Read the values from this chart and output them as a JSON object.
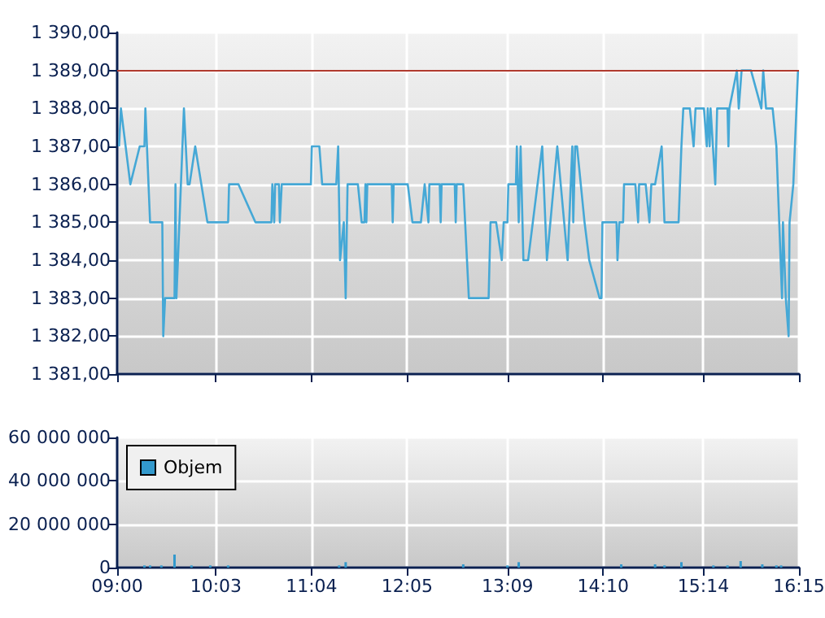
{
  "chart_data": [
    {
      "type": "line",
      "x": [
        9.02,
        9.04,
        9.14,
        9.24,
        9.29,
        9.3,
        9.35,
        9.48,
        9.49,
        9.51,
        9.61,
        9.62,
        9.63,
        9.71,
        9.75,
        9.77,
        9.83,
        9.96,
        10.18,
        10.19,
        10.29,
        10.47,
        10.64,
        10.65,
        10.67,
        10.68,
        10.72,
        10.73,
        10.75,
        11.06,
        11.07,
        11.15,
        11.18,
        11.33,
        11.35,
        11.37,
        11.41,
        11.43,
        11.45,
        11.56,
        11.6,
        11.63,
        11.64,
        11.65,
        11.66,
        11.92,
        11.93,
        11.94,
        12.09,
        12.14,
        12.23,
        12.27,
        12.31,
        12.32,
        12.43,
        12.44,
        12.45,
        12.59,
        12.6,
        12.61,
        12.68,
        12.74,
        12.95,
        12.97,
        13.03,
        13.09,
        13.11,
        13.15,
        13.16,
        13.24,
        13.25,
        13.27,
        13.29,
        13.32,
        13.37,
        13.52,
        13.57,
        13.68,
        13.79,
        13.84,
        13.85,
        13.87,
        13.89,
        13.97,
        14.02,
        14.13,
        14.15,
        14.16,
        14.31,
        14.32,
        14.34,
        14.38,
        14.39,
        14.51,
        14.54,
        14.55,
        14.62,
        14.66,
        14.68,
        14.72,
        14.79,
        14.82,
        14.97,
        15.0,
        15.02,
        15.09,
        15.13,
        15.15,
        15.24,
        15.27,
        15.28,
        15.3,
        15.31,
        15.36,
        15.38,
        15.49,
        15.5,
        15.51,
        15.59,
        15.61,
        15.64,
        15.74,
        15.85,
        15.87,
        15.88,
        15.9,
        15.97,
        16.01,
        16.07,
        16.08,
        16.11,
        16.14,
        16.15,
        16.19,
        16.24
      ],
      "series": [
        {
          "color": "#45a8d6",
          "values": [
            1387,
            1388,
            1386,
            1387,
            1387,
            1388,
            1385,
            1385,
            1382,
            1383,
            1383,
            1386,
            1383,
            1388,
            1386,
            1386,
            1387,
            1385,
            1385,
            1386,
            1386,
            1385,
            1385,
            1386,
            1385,
            1386,
            1386,
            1385,
            1386,
            1386,
            1387,
            1387,
            1386,
            1386,
            1387,
            1384,
            1385,
            1383,
            1386,
            1386,
            1385,
            1385,
            1386,
            1385,
            1386,
            1386,
            1385,
            1386,
            1386,
            1385,
            1385,
            1386,
            1385,
            1386,
            1386,
            1385,
            1386,
            1386,
            1385,
            1386,
            1386,
            1383,
            1383,
            1385,
            1385,
            1384,
            1385,
            1385,
            1386,
            1386,
            1387,
            1385,
            1387,
            1384,
            1384,
            1387,
            1384,
            1387,
            1384,
            1387,
            1385,
            1387,
            1387,
            1385,
            1384,
            1383,
            1383,
            1385,
            1385,
            1384,
            1385,
            1385,
            1386,
            1386,
            1385,
            1386,
            1386,
            1385,
            1386,
            1386,
            1387,
            1385,
            1385,
            1387,
            1388,
            1388,
            1387,
            1388,
            1388,
            1387,
            1388,
            1387,
            1388,
            1386,
            1388,
            1388,
            1387,
            1388,
            1389,
            1388,
            1389,
            1389,
            1388,
            1389,
            1389,
            1388,
            1388,
            1387,
            1383,
            1385,
            1383,
            1382,
            1385,
            1386,
            1389
          ]
        }
      ],
      "xlim": [
        9,
        16.25
      ],
      "xticks": [
        {
          "value": 9,
          "label": null
        },
        {
          "value": 10.05,
          "label": null
        },
        {
          "value": 11.0667,
          "label": null
        },
        {
          "value": 12.0833,
          "label": null
        },
        {
          "value": 13.15,
          "label": null
        },
        {
          "value": 14.1667,
          "label": null
        },
        {
          "value": 15.2333,
          "label": null
        },
        {
          "value": 16.25,
          "label": null
        }
      ],
      "ylim": [
        1381,
        1390
      ],
      "yticks": [
        {
          "value": 1381,
          "label": "1 381,00"
        },
        {
          "value": 1382,
          "label": "1 382,00"
        },
        {
          "value": 1383,
          "label": "1 383,00"
        },
        {
          "value": 1384,
          "label": "1 384,00"
        },
        {
          "value": 1385,
          "label": "1 385,00"
        },
        {
          "value": 1386,
          "label": "1 386,00"
        },
        {
          "value": 1387,
          "label": "1 387,00"
        },
        {
          "value": 1388,
          "label": "1 388,00"
        },
        {
          "value": 1389,
          "label": "1 389,00"
        },
        {
          "value": 1390,
          "label": "1 390,00"
        }
      ],
      "ref_lines": [
        {
          "axis": "y",
          "value": 1389,
          "color": "#b03a2e"
        }
      ],
      "grid": true,
      "tick_labels": "y"
    },
    {
      "type": "bar",
      "x": [
        9.29,
        9.35,
        9.47,
        9.61,
        9.79,
        9.99,
        10.18,
        11.36,
        11.43,
        12.68,
        13.15,
        13.27,
        14.36,
        14.72,
        14.82,
        15.0,
        15.34,
        15.49,
        15.63,
        15.86,
        16.01,
        16.06
      ],
      "series": [
        {
          "name": "Objem",
          "color": "#3399cc",
          "values": [
            1000000,
            1000000,
            1000000,
            6000000,
            1000000,
            1000000,
            1000000,
            1000000,
            2500000,
            1500000,
            1000000,
            2500000,
            1500000,
            1500000,
            1000000,
            2500000,
            1000000,
            1000000,
            3000000,
            1500000,
            1000000,
            1000000
          ]
        }
      ],
      "xlim": [
        9,
        16.25
      ],
      "xticks": [
        {
          "value": 9,
          "label": "09:00"
        },
        {
          "value": 10.05,
          "label": "10:03"
        },
        {
          "value": 11.0667,
          "label": "11:04"
        },
        {
          "value": 12.0833,
          "label": "12:05"
        },
        {
          "value": 13.15,
          "label": "13:09"
        },
        {
          "value": 14.1667,
          "label": "14:10"
        },
        {
          "value": 15.2333,
          "label": "15:14"
        },
        {
          "value": 16.25,
          "label": "16:15"
        }
      ],
      "ylim": [
        0,
        60000000
      ],
      "yticks": [
        {
          "value": 0,
          "label": "0"
        },
        {
          "value": 20000000,
          "label": "20 000 000"
        },
        {
          "value": 40000000,
          "label": "40 000 000"
        },
        {
          "value": 60000000,
          "label": "60 000 000"
        }
      ],
      "grid": true,
      "legend": "top left"
    }
  ]
}
